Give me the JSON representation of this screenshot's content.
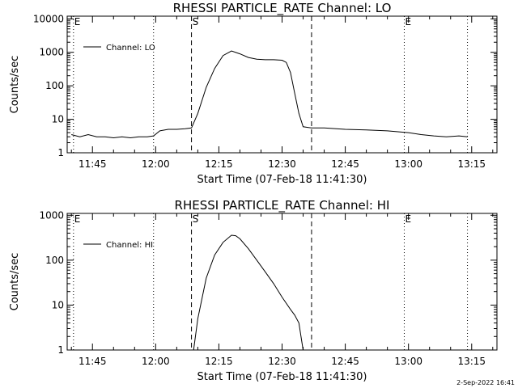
{
  "chart_data": [
    {
      "type": "line",
      "title": "RHESSI PARTICLE_RATE Channel: LO",
      "xlabel": "Start Time (07-Feb-18 11:41:30)",
      "ylabel": "Counts/sec",
      "yscale": "log",
      "ylim": [
        1,
        12000
      ],
      "y_ticks": [
        1,
        10,
        100,
        1000,
        10000
      ],
      "y_tick_labels": [
        "1",
        "10",
        "100",
        "1000",
        "10000"
      ],
      "xlim": [
        "11:39:00",
        "13:21:00"
      ],
      "x_ticks": [
        "11:45",
        "12:00",
        "12:15",
        "12:30",
        "12:45",
        "13:00",
        "13:15"
      ],
      "legend": {
        "label": "Channel: LO",
        "position": "top-left"
      },
      "markers": [
        {
          "t": "11:40:30",
          "label": "E",
          "style": "dotted"
        },
        {
          "t": "12:08:30",
          "label": "S",
          "style": "dashed"
        },
        {
          "t": "12:37:00",
          "label": "",
          "style": "dashed"
        },
        {
          "t": "12:59:00",
          "label": "E",
          "style": "dotted"
        },
        {
          "t": "11:59:30",
          "label": "",
          "style": "dotted"
        },
        {
          "t": "13:14:00",
          "label": "",
          "style": "dotted"
        }
      ],
      "series": [
        {
          "name": "Channel: LO",
          "x": [
            "11:40:00",
            "11:42:00",
            "11:44:00",
            "11:46:00",
            "11:48:00",
            "11:50:00",
            "11:52:00",
            "11:54:00",
            "11:56:00",
            "11:58:00",
            "11:59:30",
            "12:01:00",
            "12:03:00",
            "12:05:00",
            "12:07:00",
            "12:08:30",
            "12:10:00",
            "12:12:00",
            "12:14:00",
            "12:16:00",
            "12:18:00",
            "12:20:00",
            "12:22:00",
            "12:24:00",
            "12:26:00",
            "12:28:00",
            "12:30:00",
            "12:31:00",
            "12:32:00",
            "12:33:00",
            "12:34:00",
            "12:35:00",
            "12:37:00",
            "12:40:00",
            "12:45:00",
            "12:50:00",
            "12:55:00",
            "13:00:00",
            "13:03:00",
            "13:06:00",
            "13:09:00",
            "13:12:00",
            "13:14:00"
          ],
          "y": [
            3.5,
            3,
            3.5,
            3,
            3,
            2.8,
            3,
            2.8,
            3,
            3,
            3.2,
            4.5,
            5,
            5,
            5.2,
            5.5,
            15,
            90,
            330,
            800,
            1100,
            900,
            700,
            620,
            600,
            600,
            580,
            500,
            250,
            60,
            15,
            6,
            5.5,
            5.5,
            5,
            4.8,
            4.5,
            4,
            3.5,
            3.2,
            3,
            3.2,
            3
          ]
        }
      ]
    },
    {
      "type": "line",
      "title": "RHESSI PARTICLE_RATE Channel: HI",
      "xlabel": "Start Time (07-Feb-18 11:41:30)",
      "ylabel": "Counts/sec",
      "yscale": "log",
      "ylim": [
        1,
        1100
      ],
      "y_ticks": [
        1,
        10,
        100,
        1000
      ],
      "y_tick_labels": [
        "1",
        "10",
        "100",
        "1000"
      ],
      "xlim": [
        "11:39:00",
        "13:21:00"
      ],
      "x_ticks": [
        "11:45",
        "12:00",
        "12:15",
        "12:30",
        "12:45",
        "13:00",
        "13:15"
      ],
      "legend": {
        "label": "Channel: HI",
        "position": "top-left"
      },
      "markers": [
        {
          "t": "11:40:30",
          "label": "E",
          "style": "dotted"
        },
        {
          "t": "12:08:30",
          "label": "S",
          "style": "dashed"
        },
        {
          "t": "12:37:00",
          "label": "",
          "style": "dashed"
        },
        {
          "t": "12:59:00",
          "label": "E",
          "style": "dotted"
        },
        {
          "t": "11:59:30",
          "label": "",
          "style": "dotted"
        },
        {
          "t": "13:14:00",
          "label": "",
          "style": "dotted"
        }
      ],
      "series": [
        {
          "name": "Channel: HI",
          "x": [
            "12:09:00",
            "12:10:00",
            "12:12:00",
            "12:14:00",
            "12:16:00",
            "12:18:00",
            "12:19:00",
            "12:20:00",
            "12:22:00",
            "12:24:00",
            "12:26:00",
            "12:28:00",
            "12:30:00",
            "12:32:00",
            "12:33:00",
            "12:34:00",
            "12:34:30",
            "12:35:00"
          ],
          "y": [
            1,
            5,
            40,
            130,
            250,
            360,
            350,
            300,
            180,
            100,
            55,
            30,
            15,
            8,
            6,
            4,
            2,
            1
          ]
        }
      ]
    }
  ],
  "footer": {
    "timestamp": "2-Sep-2022 16:41"
  }
}
